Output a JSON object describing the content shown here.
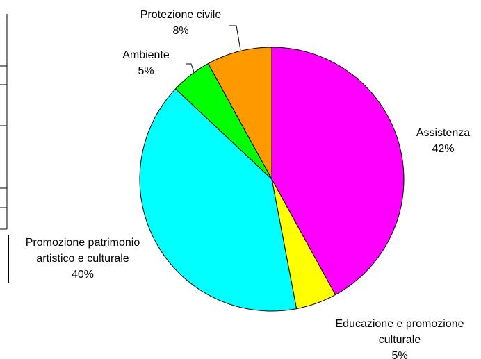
{
  "chart_data": {
    "type": "pie",
    "categories": [
      "Assistenza",
      "Educazione e promozione culturale",
      "Promozione patrimonio artistico e culturale",
      "Ambiente",
      "Protezione civile"
    ],
    "values": [
      42,
      5,
      40,
      5,
      8
    ],
    "value_labels": [
      "42%",
      "5%",
      "40%",
      "5%",
      "8%"
    ],
    "colors": [
      "#ff00ff",
      "#ffff00",
      "#00ffff",
      "#00ff00",
      "#ff9900"
    ]
  }
}
